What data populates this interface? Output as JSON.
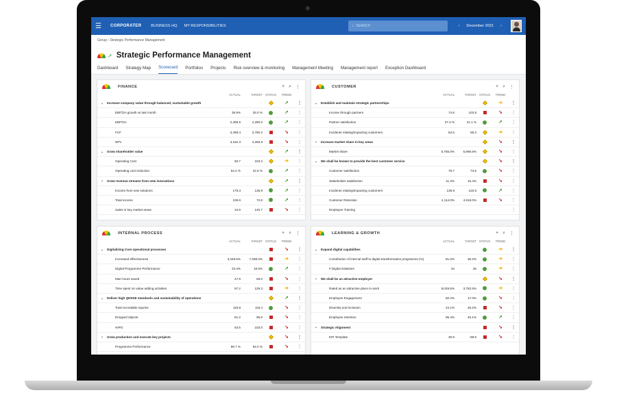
{
  "app": {
    "logo": "CORPORATER",
    "nav": [
      "BUSINESS HQ",
      "MY RESPONSIBILITIES"
    ],
    "search_placeholder": "SEARCH",
    "period": "December 2021",
    "prev_icon": "chevron-left-icon",
    "next_icon": "chevron-right-icon"
  },
  "breadcrumb": [
    "Group",
    "Strategic Performance Management"
  ],
  "page_title": "Strategic Performance Management",
  "tabs": [
    "Dashboard",
    "Strategy Map",
    "Scorecard",
    "Portfolios",
    "Projects",
    "Risk overview & monitoring",
    "Management Meeting",
    "Management report",
    "Exception Dashboard"
  ],
  "active_tab": "Scorecard",
  "columns": {
    "actual": "ACTUAL",
    "target": "TARGET",
    "status": "STATUS",
    "trend": "TREND"
  },
  "colors": {
    "brand": "#1f5fb4",
    "good": "#4f9c3c",
    "bad": "#c62828",
    "warn": "#f2c200"
  },
  "panels": [
    {
      "title": "FINANCE",
      "rows": [
        {
          "type": "group",
          "name": "Increase company value through balanced, sustainable growth",
          "actual": "",
          "target": "",
          "status": "yellow",
          "trend": "up"
        },
        {
          "type": "item",
          "name": "EBITDA growth vs last month",
          "actual": "35.9%",
          "target": "25.0 %",
          "status": "green",
          "trend": "up"
        },
        {
          "type": "item",
          "name": "EBITDA",
          "actual": "2,458.5",
          "target": "2,290.0",
          "status": "green",
          "trend": "up"
        },
        {
          "type": "item",
          "name": "FCF",
          "actual": "3,499.4",
          "target": "3,790.2",
          "status": "red",
          "trend": "down"
        },
        {
          "type": "item",
          "name": "NPV",
          "actual": "3,152.3",
          "target": "4,265.9",
          "status": "red",
          "trend": "down"
        },
        {
          "type": "group",
          "name": "Grow shareholder value",
          "actual": "",
          "target": "",
          "status": "yellow",
          "trend": "up"
        },
        {
          "type": "item",
          "name": "Operating Cost",
          "actual": "50.7",
          "target": "103.2",
          "status": "yellow",
          "trend": "right"
        },
        {
          "type": "item",
          "name": "Operating cost reduction",
          "actual": "54.2 %",
          "target": "22.8 %",
          "status": "green",
          "trend": "up"
        },
        {
          "type": "group",
          "name": "Grow revenue streams from new innovations",
          "actual": "",
          "target": "",
          "status": "yellow",
          "trend": "up"
        },
        {
          "type": "item",
          "name": "Income from new solutions",
          "actual": "179.3",
          "target": "135.9",
          "status": "green",
          "trend": "up"
        },
        {
          "type": "item",
          "name": "Total income",
          "actual": "109.6",
          "target": "72.8",
          "status": "green",
          "trend": "up"
        },
        {
          "type": "item",
          "name": "Sales in key market areas",
          "actual": "34.9",
          "target": "140.7",
          "status": "red",
          "trend": "down"
        }
      ]
    },
    {
      "title": "CUSTOMER",
      "rows": [
        {
          "type": "group",
          "name": "Establish and maintain strategic partnerships",
          "actual": "",
          "target": "",
          "status": "yellow",
          "trend": "right"
        },
        {
          "type": "item",
          "name": "Income through partners",
          "actual": "74.8",
          "target": "103.8",
          "status": "red",
          "trend": "down"
        },
        {
          "type": "item",
          "name": "Partner satisfaction",
          "actual": "37.3 %",
          "target": "21.1 %",
          "status": "green",
          "trend": "up"
        },
        {
          "type": "item",
          "name": "Incidents relating/impacting customers",
          "actual": "84.5",
          "target": "68.3",
          "status": "yellow",
          "trend": "right"
        },
        {
          "type": "group",
          "name": "Increase market share in key areas",
          "actual": "",
          "target": "",
          "status": "yellow",
          "trend": "down"
        },
        {
          "type": "item",
          "name": "Market share",
          "actual": "5,755.0%",
          "target": "5,996.5%",
          "status": "yellow",
          "trend": "down"
        },
        {
          "type": "group",
          "name": "We shall be known to provide the best customer service",
          "actual": "",
          "target": "",
          "status": "yellow",
          "trend": "down"
        },
        {
          "type": "item",
          "name": "Customer satisfaction",
          "actual": "78.7",
          "target": "73.5",
          "status": "green",
          "trend": "down"
        },
        {
          "type": "item",
          "name": "Stakeholder satisfaction",
          "actual": "11.3%",
          "target": "15.4%",
          "status": "red",
          "trend": "down"
        },
        {
          "type": "item",
          "name": "Incidents relating/impacting customers",
          "actual": "139.8",
          "target": "120.5",
          "status": "green",
          "trend": "up"
        },
        {
          "type": "item",
          "name": "Customer Retention",
          "actual": "4,114.0%",
          "target": "4,919.0%",
          "status": "red",
          "trend": "down"
        },
        {
          "type": "item",
          "name": "Employee Training",
          "actual": "",
          "target": "",
          "status": "none",
          "trend": "none"
        }
      ]
    },
    {
      "title": "INTERNAL PROCESS",
      "rows": [
        {
          "type": "group",
          "name": "Digitalizing Core operational processes",
          "actual": "",
          "target": "",
          "status": "red",
          "trend": "down"
        },
        {
          "type": "item",
          "name": "Increased effectiveness",
          "actual": "3,348.5%",
          "target": "7,268.0%",
          "status": "red",
          "trend": "right"
        },
        {
          "type": "item",
          "name": "Digital Programme Performance",
          "actual": "23.4%",
          "target": "18.5%",
          "status": "green",
          "trend": "up"
        },
        {
          "type": "item",
          "name": "Man hours saved",
          "actual": "47.9",
          "target": "65.0",
          "status": "red",
          "trend": "down"
        },
        {
          "type": "item",
          "name": "Time spent on value adding activities",
          "actual": "97.2",
          "target": "129.3",
          "status": "red",
          "trend": "right"
        },
        {
          "type": "group",
          "name": "Deliver high QHSSE standards and sustainability of operations",
          "actual": "",
          "target": "",
          "status": "yellow",
          "trend": "up"
        },
        {
          "type": "item",
          "name": "Total recordable injuries",
          "actual": "119.8",
          "target": "118.4",
          "status": "green",
          "trend": "down"
        },
        {
          "type": "item",
          "name": "Dropped objects",
          "actual": "81.2",
          "target": "95.8",
          "status": "red",
          "trend": "down"
        },
        {
          "type": "item",
          "name": "HIPO",
          "actual": "53.5",
          "target": "103.0",
          "status": "red",
          "trend": "down"
        },
        {
          "type": "group",
          "name": "Grow production and execute key projects",
          "actual": "",
          "target": "",
          "status": "yellow",
          "trend": "down"
        },
        {
          "type": "item",
          "name": "Programme Performance",
          "actual": "89.7 %",
          "target": "92.0 %",
          "status": "red",
          "trend": "down"
        }
      ]
    },
    {
      "title": "LEARNING & GROWTH",
      "rows": [
        {
          "type": "group",
          "name": "Expand digital capabilities",
          "actual": "",
          "target": "",
          "status": "green",
          "trend": "right"
        },
        {
          "type": "item",
          "name": "Contribution of internal staff to digital transformation programme (%)",
          "actual": "81.0%",
          "target": "35.2%",
          "status": "green",
          "trend": "right"
        },
        {
          "type": "item",
          "name": "# Digital initiatives",
          "actual": "34",
          "target": "25",
          "status": "green",
          "trend": "right"
        },
        {
          "type": "group",
          "name": "We shall be an attractive employer",
          "actual": "",
          "target": "",
          "status": "yellow",
          "trend": "down"
        },
        {
          "type": "item",
          "name": "Rated as an attractive place to work",
          "actual": "8,029.5%",
          "target": "3,782.5%",
          "status": "green",
          "trend": "right"
        },
        {
          "type": "item",
          "name": "Employee Engagement",
          "actual": "60.4%",
          "target": "17.0%",
          "status": "green",
          "trend": "down"
        },
        {
          "type": "item",
          "name": "Diversity and inclusion",
          "actual": "24.1%",
          "target": "25.2%",
          "status": "red",
          "trend": "down"
        },
        {
          "type": "item",
          "name": "Employee retention",
          "actual": "95.4%",
          "target": "46.1%",
          "status": "green",
          "trend": "up"
        },
        {
          "type": "group",
          "name": "Strategic Alignment",
          "actual": "",
          "target": "",
          "status": "red",
          "trend": "down"
        },
        {
          "type": "item",
          "name": "KPI Template",
          "actual": "30.9",
          "target": "-99.9",
          "status": "red",
          "trend": "down"
        }
      ]
    }
  ]
}
